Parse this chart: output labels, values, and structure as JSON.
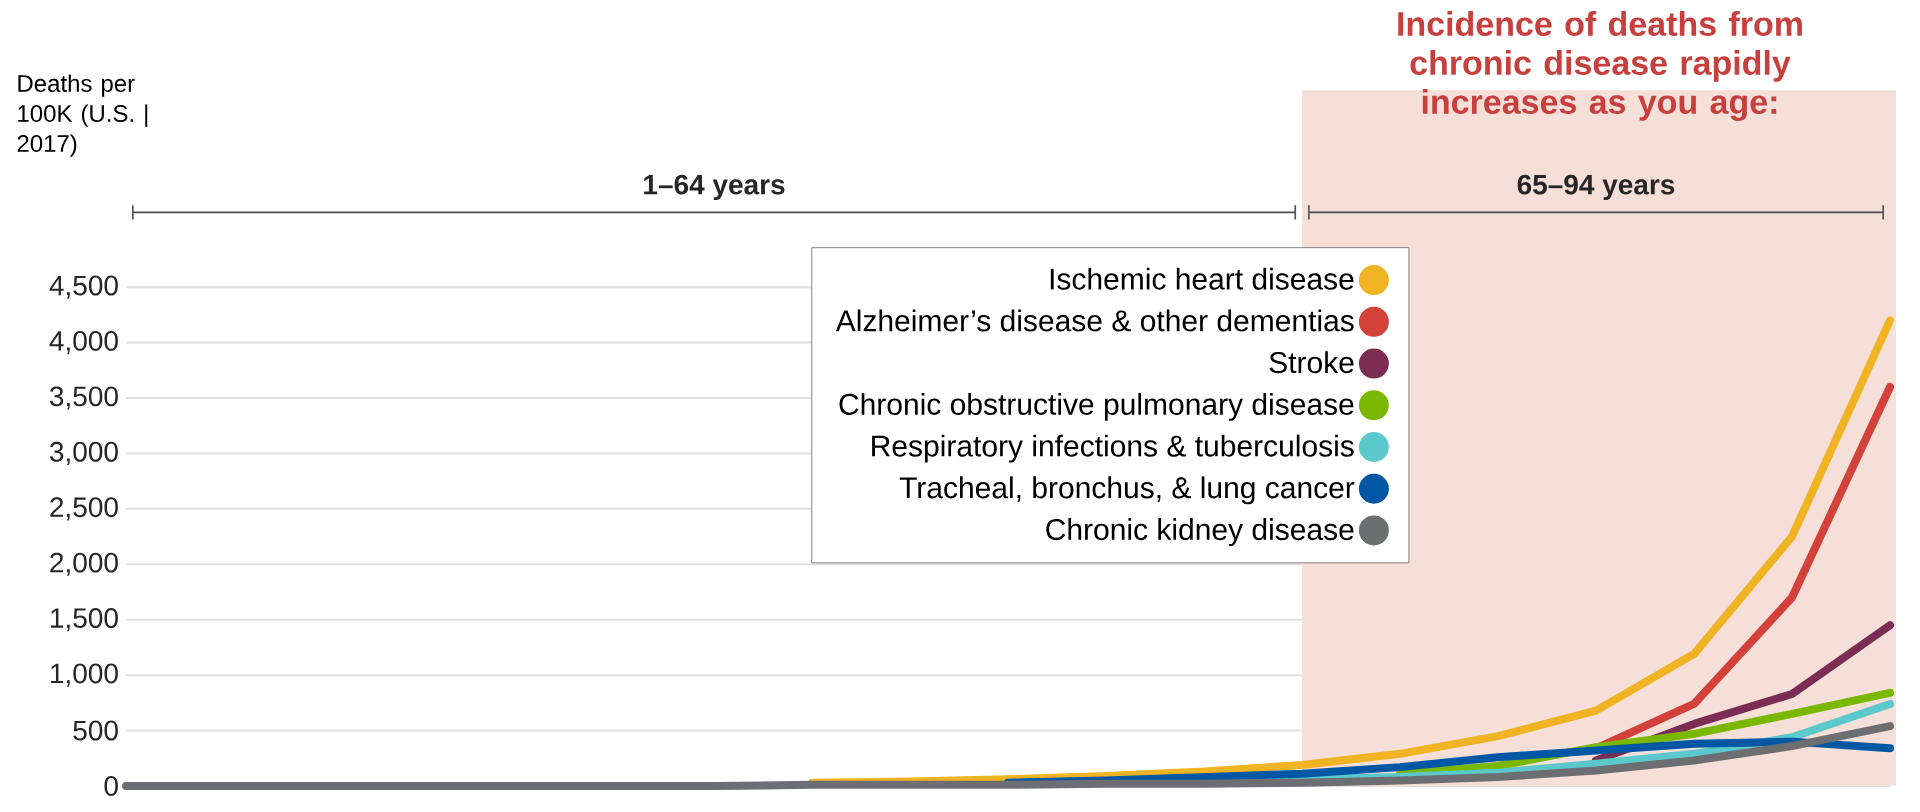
{
  "chart_data": {
    "type": "line",
    "title": "Incidence of deaths from chronic disease rapidly increases as you age:",
    "ylabel": "Deaths per 100K (U.S. | 2017)",
    "categories": [
      null,
      null,
      null,
      null,
      null,
      null,
      null,
      null,
      null,
      null,
      null,
      null,
      null,
      null,
      null,
      null,
      null,
      null,
      null
    ],
    "series": [
      {
        "name": "Ischemic heart disease",
        "color": "#f0b323",
        "values": [
          null,
          null,
          null,
          null,
          null,
          null,
          null,
          30,
          40,
          60,
          90,
          130,
          190,
          290,
          450,
          680,
          1190,
          2250,
          4200
        ]
      },
      {
        "name": "Alzheimer’s disease & other dementias",
        "color": "#d2413a",
        "values": [
          null,
          null,
          null,
          null,
          null,
          null,
          null,
          null,
          null,
          null,
          null,
          null,
          null,
          null,
          null,
          340,
          740,
          1700,
          3600
        ]
      },
      {
        "name": "Stroke",
        "color": "#7b2d54",
        "values": [
          null,
          null,
          null,
          null,
          null,
          null,
          null,
          null,
          null,
          null,
          null,
          null,
          null,
          null,
          null,
          230,
          560,
          830,
          1450
        ]
      },
      {
        "name": "Chronic obstructive pulmonary disease",
        "color": "#7ab800",
        "values": [
          null,
          null,
          null,
          null,
          null,
          null,
          null,
          null,
          null,
          null,
          null,
          null,
          null,
          110,
          180,
          350,
          470,
          650,
          840
        ]
      },
      {
        "name": "Respiratory infections & tuberculosis",
        "color": "#5bc8cc",
        "values": [
          null,
          null,
          null,
          null,
          null,
          null,
          null,
          null,
          null,
          null,
          null,
          40,
          60,
          80,
          120,
          200,
          290,
          440,
          740
        ]
      },
      {
        "name": "Tracheal, bronchus, & lung cancer",
        "color": "#0057a3",
        "values": [
          null,
          null,
          null,
          null,
          null,
          null,
          null,
          null,
          null,
          30,
          50,
          80,
          110,
          170,
          260,
          320,
          380,
          400,
          340
        ]
      },
      {
        "name": "Chronic kidney disease",
        "color": "#6d6e71",
        "values": [
          0,
          0,
          0,
          0,
          0,
          0,
          0,
          10,
          10,
          10,
          20,
          20,
          30,
          50,
          80,
          140,
          230,
          360,
          540
        ]
      }
    ],
    "ylim": [
      0,
      4500
    ],
    "yticks": [
      0,
      500,
      {
        "value": 1000,
        "label": "1,000"
      },
      {
        "value": 1500,
        "label": "1,500"
      },
      {
        "value": 2000,
        "label": "2,000"
      },
      {
        "value": 2500,
        "label": "2,500"
      },
      {
        "value": 3000,
        "label": "3,000"
      },
      {
        "value": 3500,
        "label": "3,500"
      },
      {
        "value": 4000,
        "label": "4,000"
      },
      {
        "value": 4500,
        "label": "4,500"
      }
    ],
    "annotations": [
      "1–64 years",
      "65–94 years"
    ],
    "grid": "y",
    "legend": "top",
    "tick_labels": "y",
    "marker": "none",
    "line_style": "solid"
  }
}
